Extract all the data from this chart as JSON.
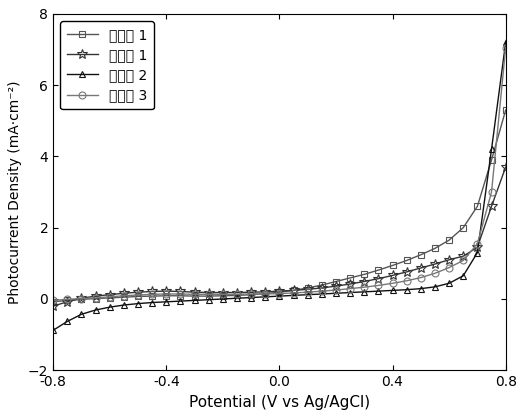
{
  "title": "",
  "xlabel": "Potential (V vs Ag/AgCl)",
  "ylabel": "Photocurrent Density (mA·cm⁻²)",
  "xlim": [
    -0.8,
    0.8
  ],
  "ylim": [
    -2,
    8
  ],
  "xticks": [
    -0.8,
    -0.4,
    0.0,
    0.4,
    0.8
  ],
  "yticks": [
    -2,
    0,
    2,
    4,
    6,
    8
  ],
  "legend_labels": [
    "实施例 1",
    "对比例 1",
    "对比例 2",
    "对比例 3"
  ],
  "series": [
    {
      "name": "实施例 1",
      "marker": "s",
      "color": "#555555",
      "x": [
        -0.8,
        -0.75,
        -0.7,
        -0.65,
        -0.6,
        -0.55,
        -0.5,
        -0.45,
        -0.4,
        -0.35,
        -0.3,
        -0.25,
        -0.2,
        -0.15,
        -0.1,
        -0.05,
        0.0,
        0.05,
        0.1,
        0.15,
        0.2,
        0.25,
        0.3,
        0.35,
        0.4,
        0.45,
        0.5,
        0.55,
        0.6,
        0.65,
        0.7,
        0.75,
        0.8
      ],
      "y": [
        -0.08,
        -0.04,
        -0.01,
        0.01,
        0.03,
        0.05,
        0.07,
        0.08,
        0.09,
        0.09,
        0.08,
        0.08,
        0.09,
        0.1,
        0.12,
        0.15,
        0.19,
        0.24,
        0.31,
        0.39,
        0.49,
        0.59,
        0.69,
        0.81,
        0.94,
        1.08,
        1.24,
        1.42,
        1.65,
        2.0,
        2.6,
        3.9,
        5.3
      ]
    },
    {
      "name": "对比例 1",
      "marker": "*",
      "color": "#333333",
      "x": [
        -0.8,
        -0.75,
        -0.7,
        -0.65,
        -0.6,
        -0.55,
        -0.5,
        -0.45,
        -0.4,
        -0.35,
        -0.3,
        -0.25,
        -0.2,
        -0.15,
        -0.1,
        -0.05,
        0.0,
        0.05,
        0.1,
        0.15,
        0.2,
        0.25,
        0.3,
        0.35,
        0.4,
        0.45,
        0.5,
        0.55,
        0.6,
        0.65,
        0.7,
        0.75,
        0.8
      ],
      "y": [
        -0.2,
        -0.08,
        0.02,
        0.08,
        0.12,
        0.16,
        0.19,
        0.21,
        0.22,
        0.21,
        0.19,
        0.18,
        0.18,
        0.18,
        0.19,
        0.2,
        0.22,
        0.24,
        0.27,
        0.31,
        0.36,
        0.42,
        0.49,
        0.57,
        0.66,
        0.76,
        0.87,
        0.98,
        1.1,
        1.2,
        1.45,
        2.6,
        3.7
      ]
    },
    {
      "name": "对比例 2",
      "marker": "^",
      "color": "#111111",
      "x": [
        -0.8,
        -0.75,
        -0.7,
        -0.65,
        -0.6,
        -0.55,
        -0.5,
        -0.45,
        -0.4,
        -0.35,
        -0.3,
        -0.25,
        -0.2,
        -0.15,
        -0.1,
        -0.05,
        0.0,
        0.05,
        0.1,
        0.15,
        0.2,
        0.25,
        0.3,
        0.35,
        0.4,
        0.45,
        0.5,
        0.55,
        0.6,
        0.65,
        0.7,
        0.75,
        0.8
      ],
      "y": [
        -0.88,
        -0.63,
        -0.43,
        -0.31,
        -0.23,
        -0.17,
        -0.13,
        -0.1,
        -0.08,
        -0.06,
        -0.04,
        -0.02,
        0.0,
        0.02,
        0.04,
        0.06,
        0.08,
        0.1,
        0.12,
        0.14,
        0.16,
        0.18,
        0.2,
        0.22,
        0.24,
        0.26,
        0.29,
        0.34,
        0.44,
        0.65,
        1.3,
        4.2,
        7.2
      ]
    },
    {
      "name": "对比例 3",
      "marker": "o",
      "color": "#777777",
      "x": [
        -0.8,
        -0.75,
        -0.7,
        -0.65,
        -0.6,
        -0.55,
        -0.5,
        -0.45,
        -0.4,
        -0.35,
        -0.3,
        -0.25,
        -0.2,
        -0.15,
        -0.1,
        -0.05,
        0.0,
        0.05,
        0.1,
        0.15,
        0.2,
        0.25,
        0.3,
        0.35,
        0.4,
        0.45,
        0.5,
        0.55,
        0.6,
        0.65,
        0.7,
        0.75,
        0.8
      ],
      "y": [
        -0.04,
        -0.01,
        0.01,
        0.03,
        0.06,
        0.09,
        0.11,
        0.13,
        0.14,
        0.14,
        0.13,
        0.13,
        0.13,
        0.13,
        0.14,
        0.14,
        0.15,
        0.17,
        0.19,
        0.22,
        0.25,
        0.29,
        0.33,
        0.38,
        0.44,
        0.51,
        0.6,
        0.72,
        0.88,
        1.08,
        1.55,
        3.0,
        7.05
      ]
    }
  ]
}
